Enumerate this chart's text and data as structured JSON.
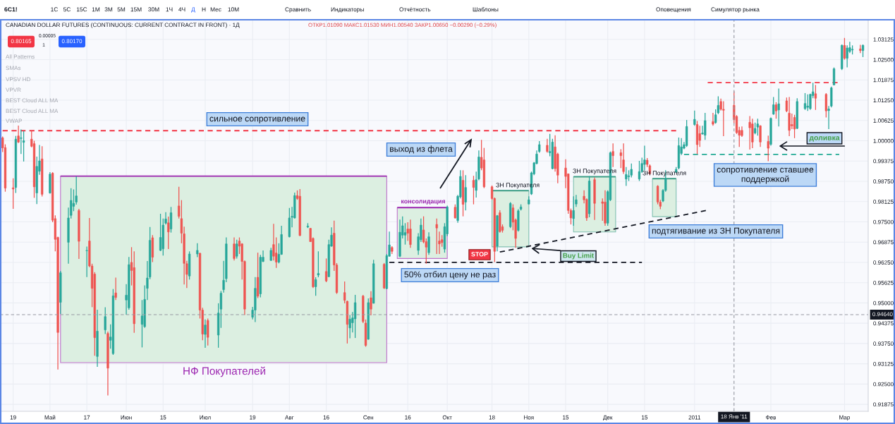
{
  "chart_data": {
    "type": "candlestick",
    "title": "CANADIAN DOLLAR FUTURES (CONTINUOUS: CURRENT CONTRACT IN FRONT) · 1Д",
    "subtitle": "ОТКР1.01090 МАКС1.01530 МИН1.00540 ЗАКР1.00650 −0.00290 (−0.29%)",
    "x": [
      "2010-04-15",
      "2010-04-16",
      "2010-04-19",
      "2010-04-20",
      "2010-04-21",
      "2010-04-22",
      "2010-04-23",
      "2010-04-26",
      "2010-04-27",
      "2010-04-28",
      "2010-04-29",
      "2010-04-30",
      "2010-05-03",
      "2010-05-04",
      "2010-05-05",
      "2010-05-06",
      "2010-05-07",
      "2010-05-10",
      "2010-05-11",
      "2010-05-12",
      "2010-05-13",
      "2010-05-14",
      "2010-05-17",
      "2010-05-18",
      "2010-05-19",
      "2010-05-20",
      "2010-05-21",
      "2010-05-24",
      "2010-05-25",
      "2010-05-26",
      "2010-05-27",
      "2010-05-28",
      "2010-06-01",
      "2010-06-02",
      "2010-06-03",
      "2010-06-04",
      "2010-06-07",
      "2010-06-08",
      "2010-06-09",
      "2010-06-10",
      "2010-06-11",
      "2010-06-14",
      "2010-06-15",
      "2010-06-16",
      "2010-06-17",
      "2010-06-18",
      "2010-06-21",
      "2010-06-22",
      "2010-06-23",
      "2010-06-24",
      "2010-06-25",
      "2010-06-28",
      "2010-06-29",
      "2010-06-30",
      "2010-07-01",
      "2010-07-02",
      "2010-07-06",
      "2010-07-07",
      "2010-07-08",
      "2010-07-09",
      "2010-07-12",
      "2010-07-13",
      "2010-07-14",
      "2010-07-15",
      "2010-07-16",
      "2010-07-19",
      "2010-07-20",
      "2010-07-21",
      "2010-07-22",
      "2010-07-23",
      "2010-07-26",
      "2010-07-27",
      "2010-07-28",
      "2010-07-29",
      "2010-07-30",
      "2010-08-02",
      "2010-08-03",
      "2010-08-04",
      "2010-08-05",
      "2010-08-06",
      "2010-08-09",
      "2010-08-10",
      "2010-08-11",
      "2010-08-12",
      "2010-08-13",
      "2010-08-16",
      "2010-08-17",
      "2010-08-18",
      "2010-08-19",
      "2010-08-20",
      "2010-08-23",
      "2010-08-24",
      "2010-08-25",
      "2010-08-26",
      "2010-08-27",
      "2010-08-30",
      "2010-08-31",
      "2010-09-01",
      "2010-09-02",
      "2010-09-03",
      "2010-09-07",
      "2010-09-08",
      "2010-09-09",
      "2010-09-10",
      "2010-09-13",
      "2010-09-14",
      "2010-09-15",
      "2010-09-16",
      "2010-09-17",
      "2010-09-20",
      "2010-09-21",
      "2010-09-22",
      "2010-09-23",
      "2010-09-24",
      "2010-09-27",
      "2010-09-28",
      "2010-09-29",
      "2010-09-30",
      "2010-10-01",
      "2010-10-04",
      "2010-10-05",
      "2010-10-06",
      "2010-10-07",
      "2010-10-08",
      "2010-10-11",
      "2010-10-12",
      "2010-10-13",
      "2010-10-14",
      "2010-10-15",
      "2010-10-18",
      "2010-10-19",
      "2010-10-20",
      "2010-10-21",
      "2010-10-22",
      "2010-10-25",
      "2010-10-26",
      "2010-10-27",
      "2010-10-28",
      "2010-10-29",
      "2010-11-01",
      "2010-11-02",
      "2010-11-03",
      "2010-11-04",
      "2010-11-05",
      "2010-11-08",
      "2010-11-09",
      "2010-11-10",
      "2010-11-11",
      "2010-11-12",
      "2010-11-15",
      "2010-11-16",
      "2010-11-17",
      "2010-11-18",
      "2010-11-19",
      "2010-11-22",
      "2010-11-23",
      "2010-11-24",
      "2010-11-26",
      "2010-11-29",
      "2010-11-30",
      "2010-12-01",
      "2010-12-02",
      "2010-12-03",
      "2010-12-06",
      "2010-12-07",
      "2010-12-08",
      "2010-12-09",
      "2010-12-10",
      "2010-12-13",
      "2010-12-14",
      "2010-12-15",
      "2010-12-16",
      "2010-12-17",
      "2010-12-20",
      "2010-12-21",
      "2010-12-22",
      "2010-12-23",
      "2010-12-27",
      "2010-12-28",
      "2010-12-29",
      "2010-12-30",
      "2010-12-31",
      "2011-01-03",
      "2011-01-04",
      "2011-01-05",
      "2011-01-06",
      "2011-01-07",
      "2011-01-10",
      "2011-01-11",
      "2011-01-12",
      "2011-01-13",
      "2011-01-14",
      "2011-01-18",
      "2011-01-19",
      "2011-01-20",
      "2011-01-21",
      "2011-01-24",
      "2011-01-25",
      "2011-01-26",
      "2011-01-27",
      "2011-01-28",
      "2011-01-31",
      "2011-02-01",
      "2011-02-02",
      "2011-02-03",
      "2011-02-04",
      "2011-02-07",
      "2011-02-08",
      "2011-02-09",
      "2011-02-10",
      "2011-02-11",
      "2011-02-14",
      "2011-02-15",
      "2011-02-16",
      "2011-02-17",
      "2011-02-18",
      "2011-02-22",
      "2011-02-23",
      "2011-02-24",
      "2011-02-25",
      "2011-02-28",
      "2011-03-01",
      "2011-03-02",
      "2011-03-03",
      "2011-03-04",
      "2011-03-07",
      "2011-03-08"
    ],
    "ohlc": [
      [
        1.0009,
        1.0013,
        0.9965,
        0.9978
      ],
      [
        0.9979,
        0.9989,
        0.9843,
        0.9854
      ],
      [
        0.9855,
        0.9884,
        0.979,
        0.9851
      ],
      [
        0.9856,
        1.0015,
        0.9839,
        1.0005
      ],
      [
        1.0015,
        1.0047,
        0.9993,
        0.9996
      ],
      [
        1.0007,
        1.0035,
        0.9959,
        1.0009
      ],
      [
        0.9995,
        1.003,
        0.9936,
        1.0
      ],
      [
        1.0005,
        1.0032,
        0.998,
        0.9983
      ],
      [
        0.9991,
        1.0,
        0.9824,
        0.9858
      ],
      [
        0.9839,
        0.9951,
        0.9805,
        0.9921
      ],
      [
        0.9906,
        0.9987,
        0.9895,
        0.9938
      ],
      [
        0.9944,
        0.9983,
        0.9828,
        0.9835
      ],
      [
        0.9839,
        0.9903,
        0.9837,
        0.9897
      ],
      [
        0.99,
        0.9903,
        0.9749,
        0.9755
      ],
      [
        0.976,
        0.977,
        0.9659,
        0.9696
      ],
      [
        0.9702,
        0.9704,
        0.9295,
        0.9409
      ],
      [
        0.9502,
        0.9599,
        0.9466,
        0.9593
      ],
      [
        0.9687,
        0.9794,
        0.9621,
        0.9762
      ],
      [
        0.977,
        0.9854,
        0.976,
        0.9816
      ],
      [
        0.9798,
        0.985,
        0.9783,
        0.9807
      ],
      [
        0.9811,
        0.989,
        0.9803,
        0.983
      ],
      [
        0.9785,
        0.979,
        0.9636,
        0.969
      ],
      [
        0.9661,
        0.9674,
        0.958,
        0.9662
      ],
      [
        0.9691,
        0.9762,
        0.961,
        0.9614
      ],
      [
        0.9614,
        0.9621,
        0.9487,
        0.9545
      ],
      [
        0.9589,
        0.9595,
        0.9337,
        0.9393
      ],
      [
        0.9335,
        0.9479,
        0.9303,
        0.9413
      ],
      [
        0.9417,
        0.9487,
        0.9404,
        0.9458
      ],
      [
        0.9406,
        0.9412,
        0.9215,
        0.9299
      ],
      [
        0.9385,
        0.9434,
        0.9359,
        0.9395
      ],
      [
        0.9344,
        0.9543,
        0.934,
        0.9522
      ],
      [
        0.9531,
        0.9578,
        0.9509,
        0.9517
      ],
      [
        0.9509,
        0.9558,
        0.9464,
        0.9524
      ],
      [
        0.9485,
        0.9642,
        0.9479,
        0.9618
      ],
      [
        0.9625,
        0.9672,
        0.9554,
        0.96
      ],
      [
        0.9609,
        0.9659,
        0.9408,
        0.9436
      ],
      [
        0.9434,
        0.9509,
        0.9363,
        0.946
      ],
      [
        0.9427,
        0.9554,
        0.9423,
        0.9511
      ],
      [
        0.9545,
        0.9629,
        0.9509,
        0.9577
      ],
      [
        0.958,
        0.9734,
        0.9573,
        0.9693
      ],
      [
        0.9701,
        0.9709,
        0.9626,
        0.9641
      ],
      [
        0.9662,
        0.9775,
        0.966,
        0.9702
      ],
      [
        0.9667,
        0.976,
        0.9646,
        0.974
      ],
      [
        0.9746,
        0.978,
        0.9742,
        0.9759
      ],
      [
        0.9747,
        0.9766,
        0.9666,
        0.9719
      ],
      [
        0.9728,
        0.9796,
        0.9717,
        0.9778
      ],
      [
        0.9799,
        0.9858,
        0.976,
        0.9767
      ],
      [
        0.976,
        0.9817,
        0.9684,
        0.9715
      ],
      [
        0.9713,
        0.9735,
        0.9557,
        0.9622
      ],
      [
        0.9621,
        0.963,
        0.9546,
        0.9588
      ],
      [
        0.9583,
        0.9659,
        0.9572,
        0.9651
      ],
      [
        0.9651,
        0.9684,
        0.9641,
        0.9662
      ],
      [
        0.9653,
        0.9655,
        0.9452,
        0.9478
      ],
      [
        0.9478,
        0.9485,
        0.9385,
        0.9404
      ],
      [
        0.9403,
        0.9449,
        0.9362,
        0.9432
      ],
      [
        0.9446,
        0.9452,
        0.9369,
        0.9394
      ],
      [
        0.9401,
        0.9499,
        0.9362,
        0.9469
      ],
      [
        0.9481,
        0.9537,
        0.9423,
        0.953
      ],
      [
        0.9541,
        0.963,
        0.9532,
        0.957
      ],
      [
        0.9575,
        0.9702,
        0.9564,
        0.9682
      ],
      [
        0.9682,
        0.9702,
        0.9631,
        0.9637
      ],
      [
        0.9644,
        0.9695,
        0.9637,
        0.9682
      ],
      [
        0.9691,
        0.9702,
        0.9651,
        0.9675
      ],
      [
        0.9682,
        0.9684,
        0.9572,
        0.9628
      ],
      [
        0.9628,
        0.9631,
        0.9463,
        0.9481
      ],
      [
        0.9456,
        0.9488,
        0.9449,
        0.9478
      ],
      [
        0.9478,
        0.958,
        0.9441,
        0.9545
      ],
      [
        0.9579,
        0.9655,
        0.9515,
        0.9521
      ],
      [
        0.9528,
        0.9648,
        0.9517,
        0.9641
      ],
      [
        0.9628,
        0.9662,
        0.9626,
        0.9641
      ],
      [
        0.9631,
        0.967,
        0.963,
        0.9662
      ],
      [
        0.968,
        0.9744,
        0.9631,
        0.9644
      ],
      [
        0.9654,
        0.9702,
        0.9608,
        0.9626
      ],
      [
        0.9626,
        0.9684,
        0.9622,
        0.965
      ],
      [
        0.965,
        0.9738,
        0.9648,
        0.9711
      ],
      [
        0.9704,
        0.9793,
        0.9702,
        0.9762
      ],
      [
        0.9764,
        0.9796,
        0.9733,
        0.9767
      ],
      [
        0.9762,
        0.984,
        0.976,
        0.9831
      ],
      [
        0.9831,
        0.9847,
        0.9818,
        0.9822
      ],
      [
        0.9829,
        0.9851,
        0.9706,
        0.9708
      ],
      [
        0.9734,
        0.9746,
        0.9731,
        0.9737
      ],
      [
        0.973,
        0.9731,
        0.9688,
        0.9689
      ],
      [
        0.9699,
        0.9702,
        0.9546,
        0.955
      ],
      [
        0.955,
        0.9579,
        0.9522,
        0.9572
      ],
      [
        0.9586,
        0.9659,
        0.9579,
        0.9591
      ],
      [
        0.9597,
        0.9637,
        0.9564,
        0.9568
      ],
      [
        0.9581,
        0.9695,
        0.9579,
        0.968
      ],
      [
        0.9675,
        0.9733,
        0.9673,
        0.9709
      ],
      [
        0.9715,
        0.9754,
        0.9599,
        0.9617
      ],
      [
        0.9617,
        0.9623,
        0.9528,
        0.9532
      ],
      [
        0.9532,
        0.9566,
        0.9499,
        0.9508
      ],
      [
        0.9505,
        0.9507,
        0.9375,
        0.9434
      ],
      [
        0.9423,
        0.9463,
        0.9391,
        0.945
      ],
      [
        0.9439,
        0.9472,
        0.9409,
        0.9454
      ],
      [
        0.9451,
        0.9525,
        0.9392,
        0.9501
      ],
      [
        0.9521,
        0.9525,
        0.9438,
        0.9443
      ],
      [
        0.9438,
        0.9449,
        0.9365,
        0.9369
      ],
      [
        0.9388,
        0.9514,
        0.9387,
        0.9501
      ],
      [
        0.9516,
        0.9536,
        0.9462,
        0.9481
      ],
      [
        0.9499,
        0.9633,
        0.9498,
        0.9621
      ],
      [
        0.9619,
        0.9623,
        0.9543,
        0.9546
      ],
      [
        0.9544,
        0.9651,
        0.9543,
        0.9646
      ],
      [
        0.9644,
        0.972,
        0.9643,
        0.9679
      ],
      [
        0.9671,
        0.9675,
        0.9651,
        0.9659
      ],
      [
        0.9644,
        0.9757,
        0.9641,
        0.9718
      ],
      [
        0.9709,
        0.9767,
        0.9699,
        0.9738
      ],
      [
        0.9709,
        0.9746,
        0.968,
        0.9717
      ],
      [
        0.9728,
        0.9749,
        0.9691,
        0.9715
      ],
      [
        0.9728,
        0.9757,
        0.967,
        0.968
      ],
      [
        0.9662,
        0.9715,
        0.9648,
        0.9704
      ],
      [
        0.9695,
        0.976,
        0.9688,
        0.974
      ],
      [
        0.9725,
        0.9767,
        0.9684,
        0.9688
      ],
      [
        0.9689,
        0.9699,
        0.9621,
        0.9672
      ],
      [
        0.9655,
        0.9718,
        0.9648,
        0.9704
      ],
      [
        0.9742,
        0.976,
        0.9651,
        0.9731
      ],
      [
        0.9691,
        0.972,
        0.9651,
        0.9682
      ],
      [
        0.9695,
        0.9709,
        0.9673,
        0.9686
      ],
      [
        0.9666,
        0.9746,
        0.9655,
        0.9735
      ],
      [
        0.9713,
        0.98,
        0.9706,
        0.9796
      ],
      [
        0.9795,
        0.9804,
        0.976,
        0.9762
      ],
      [
        0.9754,
        0.9833,
        0.9747,
        0.9829
      ],
      [
        0.9827,
        0.9909,
        0.9822,
        0.989
      ],
      [
        0.9878,
        0.9909,
        0.9767,
        0.9804
      ],
      [
        0.9811,
        0.9894,
        0.9785,
        0.9856
      ],
      [
        0.9878,
        0.9892,
        0.9804,
        0.9856
      ],
      [
        0.9847,
        0.9905,
        0.9825,
        0.988
      ],
      [
        0.9882,
        0.997,
        0.9878,
        0.995
      ],
      [
        0.9949,
        1.0003,
        0.9909,
        0.9916
      ],
      [
        0.9941,
        0.9978,
        0.9854,
        0.9858
      ],
      [
        0.9858,
        0.9862,
        0.9818,
        0.9822
      ],
      [
        0.9822,
        0.9825,
        0.9626,
        0.9659
      ],
      [
        0.9675,
        0.9771,
        0.9659,
        0.9769
      ],
      [
        0.9778,
        0.9786,
        0.9717,
        0.972
      ],
      [
        0.9735,
        0.9742,
        0.9717,
        0.9724
      ],
      [
        0.9735,
        0.9811,
        0.9731,
        0.9807
      ],
      [
        0.9793,
        0.9804,
        0.9724,
        0.9749
      ],
      [
        0.9756,
        0.976,
        0.967,
        0.9699
      ],
      [
        0.9724,
        0.9789,
        0.972,
        0.9784
      ],
      [
        0.9789,
        0.9804,
        0.9785,
        0.9796
      ],
      [
        0.9805,
        0.9829,
        0.9804,
        0.9818
      ],
      [
        0.9836,
        0.9905,
        0.9833,
        0.9901
      ],
      [
        0.9898,
        0.9934,
        0.9894,
        0.9932
      ],
      [
        0.993,
        0.997,
        0.9927,
        0.9959
      ],
      [
        0.9967,
        0.9999,
        0.9963,
        0.9988
      ],
      [
        0.9986,
        1.0006,
        0.9963,
        0.9967
      ],
      [
        0.9963,
        1.0021,
        0.9952,
        0.9967
      ],
      [
        0.9914,
        1.0006,
        0.9912,
        0.9996
      ],
      [
        0.9981,
        1.0017,
        0.9905,
        0.9914
      ],
      [
        0.9959,
        0.9963,
        0.9869,
        0.9894
      ],
      [
        0.9916,
        0.9943,
        0.9854,
        0.989
      ],
      [
        0.9898,
        0.9899,
        0.9775,
        0.9785
      ],
      [
        0.9785,
        0.9791,
        0.9742,
        0.9762
      ],
      [
        0.976,
        0.9829,
        0.9738,
        0.9785
      ],
      [
        0.9805,
        0.9833,
        0.9796,
        0.9818
      ],
      [
        0.9829,
        0.9847,
        0.9807,
        0.9818
      ],
      [
        0.9819,
        0.9822,
        0.9753,
        0.9762
      ],
      [
        0.9775,
        0.9891,
        0.9764,
        0.9876
      ],
      [
        0.988,
        0.9887,
        0.9756,
        0.9807
      ],
      [
        0.9812,
        0.9822,
        0.9753,
        0.9807
      ],
      [
        0.9811,
        0.9847,
        0.9738,
        0.9746
      ],
      [
        0.9746,
        0.9847,
        0.9738,
        0.9843
      ],
      [
        0.9818,
        0.9967,
        0.9814,
        0.9963
      ],
      [
        0.9967,
        0.9992,
        0.9919,
        0.9954
      ],
      [
        0.9963,
        0.9974,
        0.9916,
        0.9954
      ],
      [
        0.9941,
        0.9992,
        0.9898,
        0.9905
      ],
      [
        0.9882,
        0.9919,
        0.9861,
        0.9896
      ],
      [
        0.9889,
        0.9909,
        0.9876,
        0.9892
      ],
      [
        0.9894,
        0.993,
        0.9887,
        0.9912
      ],
      [
        0.9882,
        0.9938,
        0.9876,
        0.9905
      ],
      [
        0.9905,
        0.9948,
        0.9901,
        0.993
      ],
      [
        0.9927,
        0.9985,
        0.9909,
        0.9941
      ],
      [
        0.994,
        0.9947,
        0.9919,
        0.9927
      ],
      [
        0.9923,
        0.9927,
        0.9894,
        0.9898
      ],
      [
        0.986,
        0.9863,
        0.9804,
        0.9811
      ],
      [
        0.9811,
        0.9818,
        0.9789,
        0.9798
      ],
      [
        0.9814,
        0.9851,
        0.9811,
        0.9847
      ],
      [
        0.9847,
        0.9909,
        0.9843,
        0.9883
      ],
      [
        0.9903,
        0.9919,
        0.9901,
        0.9912
      ],
      [
        0.9916,
        1.001,
        0.9912,
        0.9985
      ],
      [
        0.9961,
        1.0008,
        0.9956,
        0.9981
      ],
      [
        0.9977,
        0.9996,
        0.9974,
        0.9988
      ],
      [
        0.9985,
        1.0064,
        0.9981,
        1.0044
      ],
      [
        1.005,
        1.0093,
        1.0046,
        1.0066
      ],
      [
        1.005,
        1.0061,
        0.9959,
        0.9988
      ],
      [
        1.0022,
        1.0046,
        0.9981,
        1.0001
      ],
      [
        1.0021,
        1.0046,
        1.0019,
        1.0024
      ],
      [
        1.0017,
        1.0086,
        1.0003,
        1.0062
      ],
      [
        1.0059,
        1.0086,
        1.0046,
        1.0051
      ],
      [
        1.0056,
        1.0097,
        1.0053,
        1.008
      ],
      [
        1.0086,
        1.0137,
        1.0082,
        1.0109
      ],
      [
        1.0121,
        1.013,
        1.0093,
        1.0097
      ],
      [
        1.0097,
        1.0122,
        1.0014,
        1.0094
      ],
      [
        1.0109,
        1.0153,
        1.0054,
        1.0065
      ],
      [
        1.0075,
        1.0079,
        1.0021,
        1.0025
      ],
      [
        1.0032,
        1.0043,
        0.9981,
        1.0017
      ],
      [
        1.0032,
        1.0044,
        1.0012,
        1.0016
      ],
      [
        1.0057,
        1.0076,
        0.9973,
        1.004
      ],
      [
        1.0052,
        1.0068,
        0.9977,
        0.9996
      ],
      [
        1.0024,
        1.0056,
        1.002,
        1.0038
      ],
      [
        1.0042,
        1.0068,
        1.0016,
        1.0052
      ],
      [
        1.0046,
        1.0048,
        0.9981,
        0.9996
      ],
      [
        0.9998,
        1.0016,
        0.9937,
        0.9977
      ],
      [
        0.9989,
        1.0072,
        0.9985,
        1.0069
      ],
      [
        1.0082,
        1.0135,
        1.008,
        1.0111
      ],
      [
        1.0111,
        1.0119,
        1.0068,
        1.0092
      ],
      [
        1.0095,
        1.0161,
        1.0044,
        1.0114
      ],
      [
        1.0123,
        1.0133,
        1.0088,
        1.0092
      ],
      [
        1.0085,
        1.0135,
        1.0014,
        1.0032
      ],
      [
        1.005,
        1.0084,
        1.0036,
        1.0046
      ],
      [
        1.0072,
        1.008,
        1.0008,
        1.0036
      ],
      [
        1.0038,
        1.0131,
        1.0036,
        1.0121
      ],
      [
        1.0099,
        1.0147,
        1.0095,
        1.0115
      ],
      [
        1.0103,
        1.0143,
        1.0092,
        1.0107
      ],
      [
        1.0099,
        1.0145,
        1.0095,
        1.0143
      ],
      [
        1.0139,
        1.0179,
        1.0131,
        1.0151
      ],
      [
        1.0145,
        1.0172,
        1.0095,
        1.0131
      ],
      [
        1.0143,
        1.0147,
        1.0072,
        1.0092
      ],
      [
        1.0093,
        1.0107,
        1.0036,
        1.0098
      ],
      [
        1.0107,
        1.0167,
        1.0103,
        1.0163
      ],
      [
        1.0172,
        1.0226,
        1.0171,
        1.0222
      ],
      [
        1.0222,
        1.0297,
        1.0218,
        1.0294
      ],
      [
        1.0294,
        1.0317,
        1.025,
        1.0254
      ],
      [
        1.0254,
        1.0294,
        1.0226,
        1.0286
      ],
      [
        1.0275,
        1.0305,
        1.027,
        1.0287
      ],
      [
        1.028,
        1.0294,
        1.0266,
        1.0282
      ],
      [
        1.0283,
        1.0296,
        1.027,
        1.0278
      ],
      [
        1.0278,
        1.0297,
        1.0258,
        1.0294
      ]
    ],
    "colors": [
      "#ef5350",
      "#ef5350",
      "#ef5350",
      "#26a69a",
      "#ef5350",
      "#26a69a",
      "#26a69a",
      "#ef5350",
      "#ef5350",
      "#26a69a",
      "#26a69a",
      "#ef5350",
      "#26a69a",
      "#ef5350",
      "#ef5350",
      "#ef5350",
      "#26a69a",
      "#26a69a",
      "#26a69a",
      "#26a69a",
      "#26a69a",
      "#ef5350",
      "#26a69a",
      "#ef5350",
      "#ef5350",
      "#ef5350",
      "#26a69a",
      "#26a69a",
      "#ef5350",
      "#26a69a",
      "#26a69a",
      "#ef5350",
      "#26a69a",
      "#26a69a",
      "#ef5350",
      "#ef5350",
      "#26a69a",
      "#26a69a",
      "#26a69a",
      "#26a69a",
      "#ef5350",
      "#26a69a",
      "#26a69a",
      "#26a69a",
      "#ef5350",
      "#26a69a",
      "#ef5350",
      "#ef5350",
      "#ef5350",
      "#ef5350",
      "#26a69a",
      "#26a69a",
      "#ef5350",
      "#ef5350",
      "#26a69a",
      "#ef5350",
      "#26a69a",
      "#26a69a",
      "#26a69a",
      "#26a69a",
      "#ef5350",
      "#26a69a",
      "#ef5350",
      "#ef5350",
      "#ef5350",
      "#26a69a",
      "#26a69a",
      "#ef5350",
      "#26a69a",
      "#26a69a",
      "#26a69a",
      "#ef5350",
      "#ef5350",
      "#26a69a",
      "#26a69a",
      "#26a69a",
      "#26a69a",
      "#26a69a",
      "#ef5350",
      "#ef5350",
      "#26a69a",
      "#ef5350",
      "#ef5350",
      "#26a69a",
      "#26a69a",
      "#ef5350",
      "#26a69a",
      "#26a69a",
      "#ef5350",
      "#ef5350",
      "#ef5350",
      "#ef5350",
      "#26a69a",
      "#26a69a",
      "#26a69a",
      "#ef5350",
      "#ef5350",
      "#26a69a",
      "#ef5350",
      "#26a69a",
      "#ef5350",
      "#26a69a",
      "#26a69a",
      "#ef5350",
      "#26a69a",
      "#26a69a",
      "#26a69a",
      "#ef5350",
      "#ef5350",
      "#26a69a",
      "#26a69a",
      "#ef5350",
      "#ef5350",
      "#26a69a",
      "#ef5350",
      "#ef5350",
      "#ef5350",
      "#26a69a",
      "#26a69a",
      "#ef5350",
      "#26a69a",
      "#26a69a",
      "#ef5350",
      "#26a69a",
      "#ef5350",
      "#26a69a",
      "#26a69a",
      "#ef5350",
      "#ef5350",
      "#ef5350",
      "#ef5350",
      "#26a69a",
      "#ef5350",
      "#ef5350",
      "#26a69a",
      "#ef5350",
      "#ef5350",
      "#26a69a",
      "#26a69a",
      "#26a69a",
      "#26a69a",
      "#26a69a",
      "#26a69a",
      "#26a69a",
      "#ef5350",
      "#26a69a",
      "#26a69a",
      "#ef5350",
      "#ef5350",
      "#ef5350",
      "#ef5350",
      "#ef5350",
      "#26a69a",
      "#26a69a",
      "#ef5350",
      "#ef5350",
      "#26a69a",
      "#ef5350",
      "#ef5350",
      "#ef5350",
      "#26a69a",
      "#26a69a",
      "#ef5350",
      "#ef5350",
      "#ef5350",
      "#26a69a",
      "#26a69a",
      "#26a69a",
      "#26a69a",
      "#26a69a",
      "#26a69a",
      "#ef5350",
      "#ef5350",
      "#ef5350",
      "#ef5350",
      "#26a69a",
      "#26a69a",
      "#26a69a",
      "#26a69a",
      "#26a69a",
      "#26a69a",
      "#26a69a",
      "#26a69a",
      "#ef5350",
      "#ef5350",
      "#26a69a",
      "#26a69a",
      "#ef5350",
      "#26a69a",
      "#26a69a",
      "#ef5350",
      "#ef5350",
      "#ef5350",
      "#ef5350",
      "#ef5350",
      "#ef5350",
      "#ef5350",
      "#ef5350",
      "#26a69a",
      "#26a69a",
      "#ef5350",
      "#ef5350",
      "#26a69a",
      "#26a69a",
      "#ef5350",
      "#26a69a",
      "#ef5350",
      "#ef5350",
      "#ef5350",
      "#ef5350",
      "#26a69a",
      "#26a69a",
      "#26a69a",
      "#26a69a",
      "#26a69a",
      "#ef5350",
      "#ef5350",
      "#26a69a",
      "#26a69a",
      "#26a69a",
      "#26a69a",
      "#ef5350",
      "#26a69a",
      "#26a69a",
      "#26a69a",
      "#ef5350",
      "#26a69a"
    ],
    "series": [
      {
        "type": "line",
        "x": [
          "2010-05-07",
          "2010-09-08"
        ],
        "values": [
          0.9891,
          0.9891
        ],
        "lower": [
          0.9316,
          0.9316
        ],
        "upper": [
          0.9891,
          0.9891
        ],
        "color": "#9c27b0",
        "line_style": "solid"
      },
      {
        "type": "line",
        "x": [
          "2010-09-12",
          "2010-10-01"
        ],
        "values": [
          0.9794,
          0.9794
        ],
        "lower": [
          0.9637,
          0.9637
        ],
        "upper": [
          0.9794,
          0.9794
        ],
        "color": "#9c27b0",
        "line_style": "solid"
      },
      {
        "type": "line",
        "x": [
          "2010-10-18",
          "2010-11-01"
        ],
        "values": [
          0.9846,
          0.9846
        ],
        "lower": [
          0.9673,
          0.9673
        ],
        "upper": [
          0.9846,
          0.9846
        ],
        "color": "#3d9e86",
        "line_style": "solid"
      },
      {
        "type": "line",
        "x": [
          "2010-11-18",
          "2010-12-04"
        ],
        "values": [
          0.9889,
          0.9889
        ],
        "lower": [
          0.9719,
          0.9719
        ],
        "upper": [
          0.9889,
          0.9889
        ],
        "color": "#3d9e86",
        "line_style": "solid"
      },
      {
        "type": "line",
        "x": [
          "2010-12-18",
          "2010-12-27"
        ],
        "values": [
          0.9883,
          0.9883
        ],
        "lower": [
          0.9766,
          0.9766
        ],
        "upper": [
          0.9883,
          0.9883
        ],
        "color": "#3d9e86",
        "line_style": "solid"
      },
      {
        "type": "line",
        "x": [
          "2010-04-15",
          "2010-12-27"
        ],
        "values": [
          1.0031,
          1.0031
        ],
        "color": "#f23645",
        "line_style": "dashed"
      },
      {
        "type": "line",
        "x": [
          "2011-01-08",
          "2011-02-27"
        ],
        "values": [
          1.0179,
          1.0179
        ],
        "color": "#f23645",
        "line_style": "dashed"
      },
      {
        "type": "line",
        "x": [
          "2010-12-30",
          "2011-02-27"
        ],
        "values": [
          0.9958,
          0.9958
        ],
        "color": "#22ab94",
        "line_style": "dashed"
      },
      {
        "type": "line",
        "x": [
          "2010-09-09",
          "2010-12-14"
        ],
        "values": [
          0.9625,
          0.9625
        ],
        "color": "#131722",
        "line_style": "dashed"
      },
      {
        "type": "line",
        "x": [
          "2010-10-21",
          "2011-01-08"
        ],
        "values": [
          0.9657,
          0.9786
        ],
        "color": "#131722",
        "line_style": "dashed"
      }
    ],
    "xlim": [
      "2010-04-14",
      "2011-03-10"
    ],
    "xticks": [
      {
        "value": "2010-04-19",
        "label": "19"
      },
      {
        "value": "2010-05-03",
        "label": "Май"
      },
      {
        "value": "2010-05-17",
        "label": "17"
      },
      {
        "value": "2010-06-01",
        "label": "Июн"
      },
      {
        "value": "2010-06-15",
        "label": "15"
      },
      {
        "value": "2010-07-01",
        "label": "Июл"
      },
      {
        "value": "2010-07-19",
        "label": "19"
      },
      {
        "value": "2010-08-02",
        "label": "Авг"
      },
      {
        "value": "2010-08-16",
        "label": "16"
      },
      {
        "value": "2010-09-01",
        "label": "Сен"
      },
      {
        "value": "2010-09-16",
        "label": "16"
      },
      {
        "value": "2010-10-01",
        "label": "Окт"
      },
      {
        "value": "2010-10-18",
        "label": "18"
      },
      {
        "value": "2010-11-01",
        "label": "Ноя"
      },
      {
        "value": "2010-11-15",
        "label": "15"
      },
      {
        "value": "2010-12-01",
        "label": "Дек"
      },
      {
        "value": "2010-12-15",
        "label": "15"
      },
      {
        "value": "2011-01-03",
        "label": "2011"
      },
      {
        "value": "2011-02-01",
        "label": "Фев"
      },
      {
        "value": "2011-03-01",
        "label": "Мар"
      }
    ],
    "ylim": [
      0.9166,
      1.0373
    ],
    "yticks": [
      0.91875,
      {
        "value": 0.925,
        "label": "0.92500"
      },
      0.93125,
      {
        "value": 0.9375,
        "label": "0.93750"
      },
      0.94375,
      {
        "value": 0.95,
        "label": "0.95000"
      },
      0.95625,
      {
        "value": 0.9625,
        "label": "0.96250"
      },
      0.96875,
      {
        "value": 0.975,
        "label": "0.97500"
      },
      0.98125,
      {
        "value": 0.9875,
        "label": "0.98750"
      },
      0.99375,
      {
        "value": 1.0,
        "label": "1.00000"
      },
      1.00625,
      {
        "value": 1.0125,
        "label": "1.01250"
      },
      1.01875,
      {
        "value": 1.025,
        "label": "1.02500"
      },
      1.03125
    ],
    "grid": true,
    "ref_lines": [
      {
        "axis": "x",
        "value": "2011-01-18",
        "label": "18 Янв '11",
        "color": "#9598a1",
        "line_style": "dashed"
      },
      {
        "axis": "y",
        "value": 0.9464,
        "label": "0.94640",
        "color": "#9598a1",
        "line_style": "dashed"
      }
    ],
    "annotations": [
      "6C1!",
      "1С",
      "5С",
      "15С",
      "1М",
      "3М",
      "5М",
      "15М",
      "30М",
      "1Ч",
      "4Ч",
      "Д",
      "Н",
      "Мес",
      "10М",
      "Сравнить",
      "Индикаторы",
      "Отчётность",
      "Шаблоны",
      "Оповещения",
      "Симулятор рынка",
      "0.80165",
      "0.00005",
      "1",
      "0.80170",
      "All Patterns",
      "SMAs",
      "VPSV HD",
      "VPVR",
      "BEST Cloud ALL MA",
      "BEST Cloud ALL MA",
      "VWAP",
      "сильное сопротивление",
      "выход из флета",
      "консолидация",
      "ЗН Покупателя",
      "ЗН Покупателя",
      "ЗН Покупателя",
      "STOP",
      {
        "text": "Buy Limit",
        "x": "2010-11-02",
        "y": 0.9668
      },
      "50% отбил цену не раз",
      "подтягивание из ЗН Покупателя",
      "сопротивление ставшее\nподдержкой",
      "доливка",
      "НФ Покупателей"
    ]
  }
}
